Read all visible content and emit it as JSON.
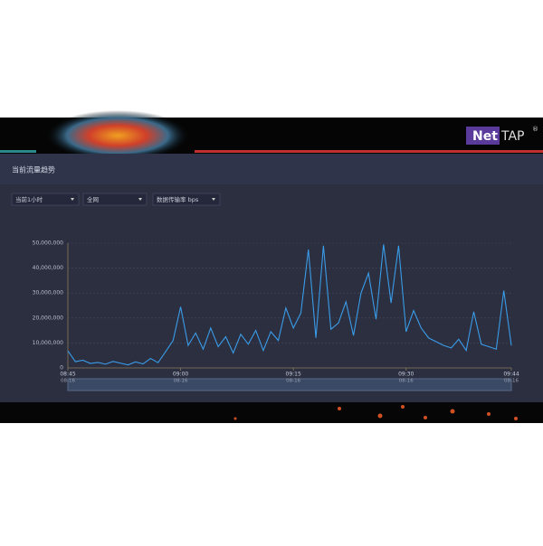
{
  "header": {
    "brand_net": "Net",
    "brand_tap": "TAP",
    "brand_mark": "®"
  },
  "panel": {
    "title": "当前流量趋势",
    "filters": [
      "当前1小时",
      "全网",
      "数据传输率 bps"
    ]
  },
  "chart_data": {
    "type": "line",
    "color": "#3a9ce8",
    "categories": [
      "08:45",
      null,
      null,
      null,
      null,
      null,
      null,
      null,
      null,
      null,
      null,
      null,
      null,
      null,
      null,
      "09:00",
      null,
      null,
      null,
      null,
      null,
      null,
      null,
      null,
      null,
      null,
      null,
      null,
      null,
      null,
      "09:15",
      null,
      null,
      null,
      null,
      null,
      null,
      null,
      null,
      null,
      null,
      null,
      null,
      null,
      null,
      "09:30",
      null,
      null,
      null,
      null,
      null,
      null,
      null,
      null,
      null,
      null,
      null,
      null,
      null,
      "09:44"
    ],
    "category_dates": [
      "08-16",
      null,
      null,
      null,
      null,
      null,
      null,
      null,
      null,
      null,
      null,
      null,
      null,
      null,
      null,
      "08-16",
      null,
      null,
      null,
      null,
      null,
      null,
      null,
      null,
      null,
      null,
      null,
      null,
      null,
      null,
      "08-16",
      null,
      null,
      null,
      null,
      null,
      null,
      null,
      null,
      null,
      null,
      null,
      null,
      null,
      null,
      "08-16",
      null,
      null,
      null,
      null,
      null,
      null,
      null,
      null,
      null,
      null,
      null,
      null,
      null,
      "08-16"
    ],
    "values": [
      6800000,
      2500000,
      3100000,
      1800000,
      2200000,
      1500000,
      2600000,
      1900000,
      1200000,
      2400000,
      1600000,
      3800000,
      2100000,
      6500000,
      11000000,
      24500000,
      9000000,
      14000000,
      7500000,
      16000000,
      8500000,
      12500000,
      6000000,
      13500000,
      9500000,
      15000000,
      7000000,
      14500000,
      11000000,
      24000000,
      16000000,
      22000000,
      47500000,
      12000000,
      49000000,
      15500000,
      18000000,
      26500000,
      13000000,
      30000000,
      38000000,
      19500000,
      49500000,
      26000000,
      49000000,
      14500000,
      23000000,
      16000000,
      12000000,
      10500000,
      9000000,
      8000000,
      11500000,
      7000000,
      22500000,
      9500000,
      8500000,
      7500000,
      31000000,
      9000000
    ],
    "ylim": [
      0,
      50000000
    ],
    "yticks": [
      0,
      {
        "value": 10000000,
        "label": "10,000,000"
      },
      {
        "value": 20000000,
        "label": "20,000,000"
      },
      {
        "value": 30000000,
        "label": "30,000,000"
      },
      {
        "value": 40000000,
        "label": "40,000,000"
      },
      {
        "value": 50000000,
        "label": "50,000,000"
      }
    ],
    "grid": true
  }
}
